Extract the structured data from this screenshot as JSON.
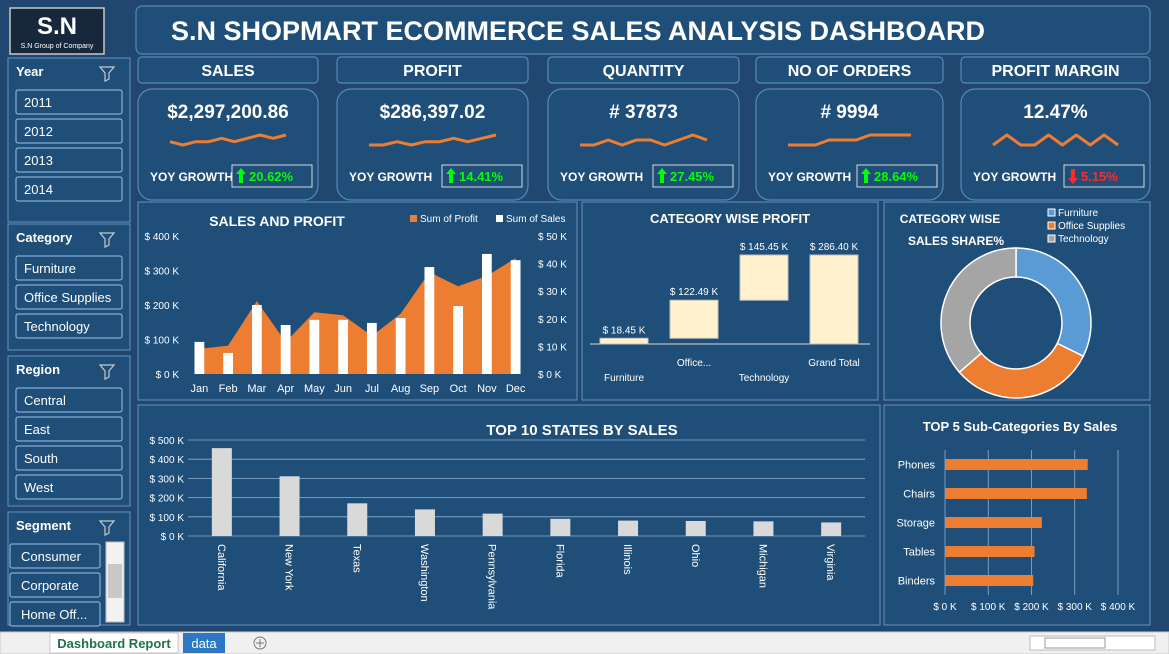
{
  "header": {
    "logo": "S.N",
    "logo_caption": "S.N Group of Company",
    "title": "S.N SHOPMART ECOMMERCE SALES ANALYSIS DASHBOARD"
  },
  "slicers": [
    {
      "title": "Year",
      "items": [
        "2011",
        "2012",
        "2013",
        "2014"
      ]
    },
    {
      "title": "Category",
      "items": [
        "Furniture",
        "Office Supplies",
        "Technology"
      ]
    },
    {
      "title": "Region",
      "items": [
        "Central",
        "East",
        "South",
        "West"
      ]
    },
    {
      "title": "Segment",
      "items": [
        "Consumer",
        "Corporate",
        "Home Off..."
      ]
    }
  ],
  "kpis": [
    {
      "title": "SALES",
      "value": "$2,297,200.86",
      "growth_label": "YOY GROWTH",
      "growth": "20.62%",
      "direction": "up",
      "trend": [
        4,
        3,
        4,
        4,
        5,
        4,
        5,
        6,
        5,
        6
      ]
    },
    {
      "title": "PROFIT",
      "value": "$286,397.02",
      "growth_label": "YOY GROWTH",
      "growth": "14.41%",
      "direction": "up",
      "trend": [
        3,
        3,
        4,
        3,
        4,
        4,
        5,
        4,
        5,
        6
      ]
    },
    {
      "title": "QUANTITY",
      "value": "# 37873",
      "growth_label": "YOY GROWTH",
      "growth": "27.45%",
      "direction": "up",
      "trend": [
        4,
        4,
        5,
        4,
        5,
        5,
        4,
        5,
        6,
        5
      ]
    },
    {
      "title": "NO OF ORDERS",
      "value": "# 9994",
      "growth_label": "YOY GROWTH",
      "growth": "28.64%",
      "direction": "up",
      "trend": [
        3,
        3,
        3,
        4,
        4,
        4,
        5,
        5,
        5,
        5
      ]
    },
    {
      "title": "PROFIT MARGIN",
      "value": "12.47%",
      "growth_label": "YOY GROWTH",
      "growth": "5.15%",
      "direction": "down",
      "trend": [
        4,
        5,
        4,
        4,
        5,
        4,
        5,
        4,
        5,
        4
      ]
    }
  ],
  "chart_data": [
    {
      "type": "combo",
      "title": "SALES AND PROFIT",
      "categories": [
        "Jan",
        "Feb",
        "Mar",
        "Apr",
        "May",
        "Jun",
        "Jul",
        "Aug",
        "Sep",
        "Oct",
        "Nov",
        "Dec"
      ],
      "series": [
        {
          "name": "Sum of Profit",
          "color": "#ed7d31",
          "type": "area",
          "axis": "y2",
          "values": [
            9.1,
            10.3,
            26.4,
            11.6,
            22.4,
            21.3,
            13.8,
            21.8,
            36.9,
            31.8,
            35.5,
            42.0
          ]
        },
        {
          "name": "Sum of Sales",
          "color": "#ffffff",
          "type": "bar",
          "values": [
            93,
            61,
            200,
            142,
            157,
            157,
            148,
            162,
            310,
            197,
            348,
            330
          ]
        }
      ],
      "ylim": [
        0,
        400
      ],
      "yticks": [
        {
          "value": 0,
          "label": "$ 0 K"
        },
        {
          "value": 100,
          "label": "$ 100 K"
        },
        {
          "value": 200,
          "label": "$ 200 K"
        },
        {
          "value": 300,
          "label": "$ 300 K"
        },
        {
          "value": 400,
          "label": "$ 400 K"
        }
      ],
      "y2lim": [
        0,
        50
      ],
      "y2ticks": [
        {
          "value": 0,
          "label": "$ 0 K"
        },
        {
          "value": 10,
          "label": "$ 10 K"
        },
        {
          "value": 20,
          "label": "$ 20 K"
        },
        {
          "value": 30,
          "label": "$ 30 K"
        },
        {
          "value": 40,
          "label": "$ 40 K"
        },
        {
          "value": 50,
          "label": "$ 50 K"
        }
      ],
      "legend": "top-right"
    },
    {
      "type": "waterfall",
      "title": "CATEGORY WISE PROFIT",
      "categories": [
        "Furniture",
        "Office...",
        "Technology",
        "Grand Total"
      ],
      "values": [
        18.45,
        122.49,
        145.45,
        286.4
      ],
      "value_labels": [
        "$ 18.45 K",
        "$ 122.49 K",
        "$ 145.45 K",
        "$ 286.40 K"
      ],
      "last_is_total": true,
      "color": "#fff2cc"
    },
    {
      "type": "pie",
      "title": [
        "CATEGORY WISE",
        "SALES SHARE%"
      ],
      "categories": [
        "Furniture",
        "Office Supplies",
        "Technology"
      ],
      "values": [
        32.3,
        31.3,
        36.4
      ],
      "colors": [
        "#5b9bd5",
        "#ed7d31",
        "#a5a5a5"
      ],
      "donut": true,
      "legend": "top-right"
    },
    {
      "type": "bar",
      "title": "TOP 10 STATES BY SALES",
      "categories": [
        "California",
        "New York",
        "Texas",
        "Washington",
        "Pennsylvania",
        "Florida",
        "Illinois",
        "Ohio",
        "Michigan",
        "Virginia"
      ],
      "values": [
        457.7,
        310.9,
        170.2,
        138.6,
        116.5,
        89.5,
        80.2,
        78.3,
        76.3,
        70.6
      ],
      "ylim": [
        0,
        500
      ],
      "yticks": [
        {
          "value": 0,
          "label": "$ 0 K"
        },
        {
          "value": 100,
          "label": "$ 100 K"
        },
        {
          "value": 200,
          "label": "$ 200 K"
        },
        {
          "value": 300,
          "label": "$ 300 K"
        },
        {
          "value": 400,
          "label": "$ 400 K"
        },
        {
          "value": 500,
          "label": "$ 500 K"
        }
      ],
      "color": "#d9d9d9",
      "grid": true
    },
    {
      "type": "hbar",
      "title": "TOP 5 Sub-Categories By Sales",
      "categories": [
        "Phones",
        "Chairs",
        "Storage",
        "Tables",
        "Binders"
      ],
      "values": [
        330,
        328,
        224,
        207,
        204
      ],
      "xlim": [
        0,
        400
      ],
      "xticks": [
        {
          "value": 0,
          "label": "$ 0 K"
        },
        {
          "value": 100,
          "label": "$ 100 K"
        },
        {
          "value": 200,
          "label": "$ 200 K"
        },
        {
          "value": 300,
          "label": "$ 300 K"
        },
        {
          "value": 400,
          "label": "$ 400 K"
        }
      ],
      "color": "#ed7d31",
      "grid": true
    }
  ],
  "tabs": [
    "Dashboard Report",
    "data"
  ]
}
